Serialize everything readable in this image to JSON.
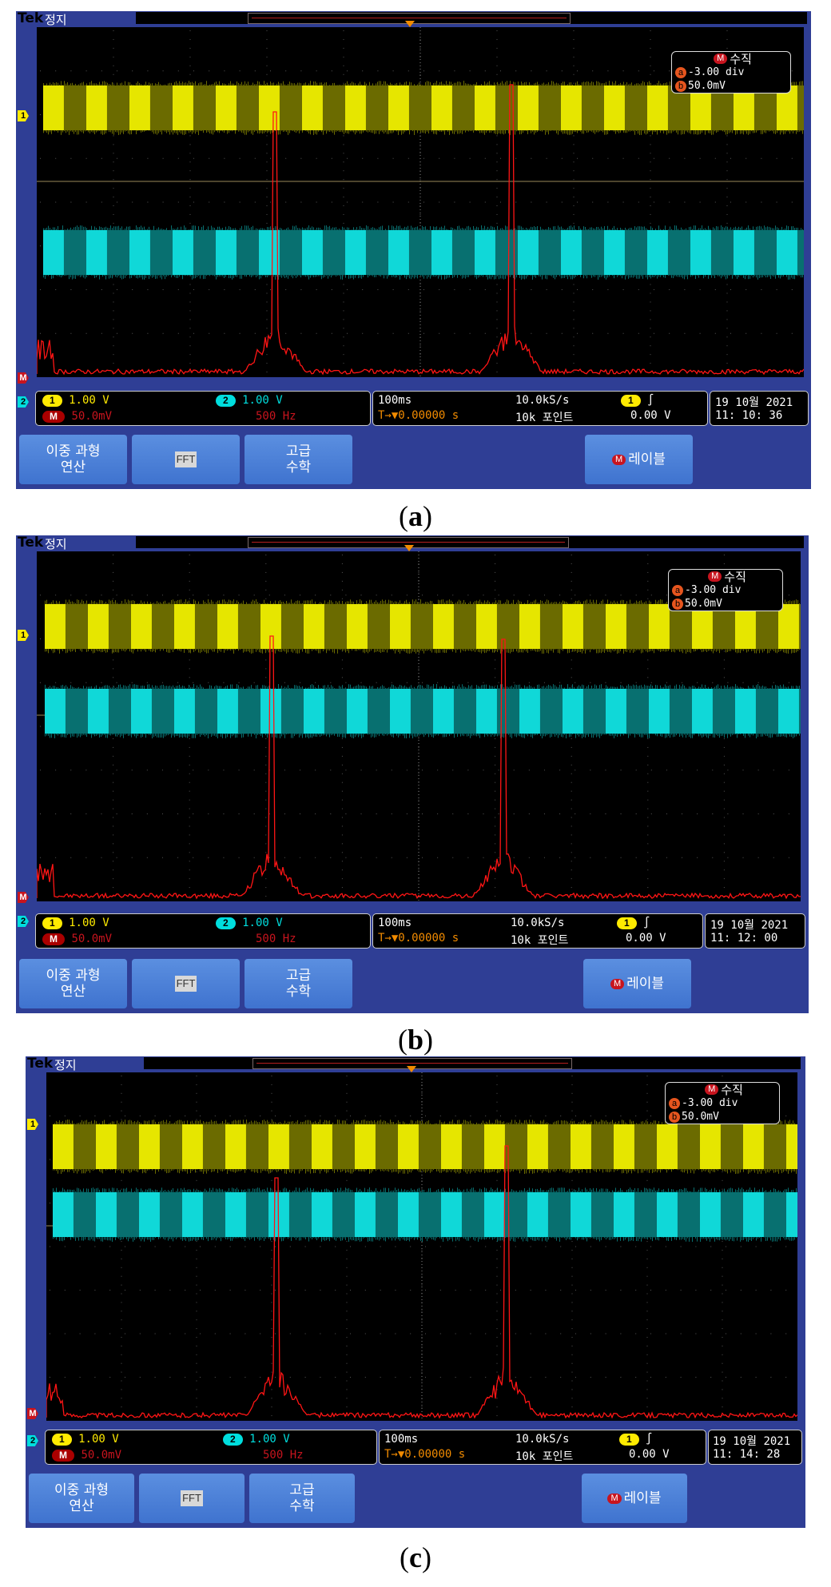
{
  "panels": [
    {
      "id": "a",
      "caption_letter": "a",
      "status_top": "정지",
      "brand": "Tek",
      "vertical_box": {
        "title": "수직",
        "a_value": "-3.00 div",
        "b_value": "50.0mV"
      },
      "ch1": {
        "label": "1",
        "scale": "1.00 V"
      },
      "ch2": {
        "label": "2",
        "scale": "1.00 V"
      },
      "math": {
        "label": "M",
        "scale": "50.0mV",
        "freq": "500 Hz"
      },
      "timebase": "100ms",
      "trigger_pos": "0.00000 s",
      "sample_rate": "10.0kS/s",
      "record_length": "10k 포인트",
      "trigger_source": "1",
      "trigger_level": "0.00 V",
      "date": "19 10월  2021",
      "time": "11: 10: 36",
      "buttons": {
        "dual": "이중 과형\n연산",
        "fft": "FFT",
        "advanced": "고급\n수학",
        "label": "레이블"
      }
    },
    {
      "id": "b",
      "caption_letter": "b",
      "status_top": "정지",
      "brand": "Tek",
      "vertical_box": {
        "title": "수직",
        "a_value": "-3.00 div",
        "b_value": "50.0mV"
      },
      "ch1": {
        "label": "1",
        "scale": "1.00 V"
      },
      "ch2": {
        "label": "2",
        "scale": "1.00 V"
      },
      "math": {
        "label": "M",
        "scale": "50.0mV",
        "freq": "500 Hz"
      },
      "timebase": "100ms",
      "trigger_pos": "0.00000 s",
      "sample_rate": "10.0kS/s",
      "record_length": "10k 포인트",
      "trigger_source": "1",
      "trigger_level": "0.00 V",
      "date": "19 10월  2021",
      "time": "11: 12: 00",
      "buttons": {
        "dual": "이중 과형\n연산",
        "fft": "FFT",
        "advanced": "고급\n수학",
        "label": "레이블"
      }
    },
    {
      "id": "c",
      "caption_letter": "c",
      "status_top": "정지",
      "brand": "Tek",
      "vertical_box": {
        "title": "수직",
        "a_value": "-3.00 div",
        "b_value": "50.0mV"
      },
      "ch1": {
        "label": "1",
        "scale": "1.00 V"
      },
      "ch2": {
        "label": "2",
        "scale": "1.00 V"
      },
      "math": {
        "label": "M",
        "scale": "50.0mV",
        "freq": "500 Hz"
      },
      "timebase": "100ms",
      "trigger_pos": "0.00000 s",
      "sample_rate": "10.0kS/s",
      "record_length": "10k 포인트",
      "trigger_source": "1",
      "trigger_level": "0.00 V",
      "date": "19 10월  2021",
      "time": "11: 14: 28",
      "buttons": {
        "dual": "이중 과형\n연산",
        "fft": "FFT",
        "advanced": "고급\n수학",
        "label": "레이블"
      }
    }
  ],
  "colors": {
    "ch1": "#ffeb00",
    "ch2": "#00dede",
    "math": "#ff1010",
    "bezel": "#2f3e95",
    "trigger": "#f28b00"
  }
}
